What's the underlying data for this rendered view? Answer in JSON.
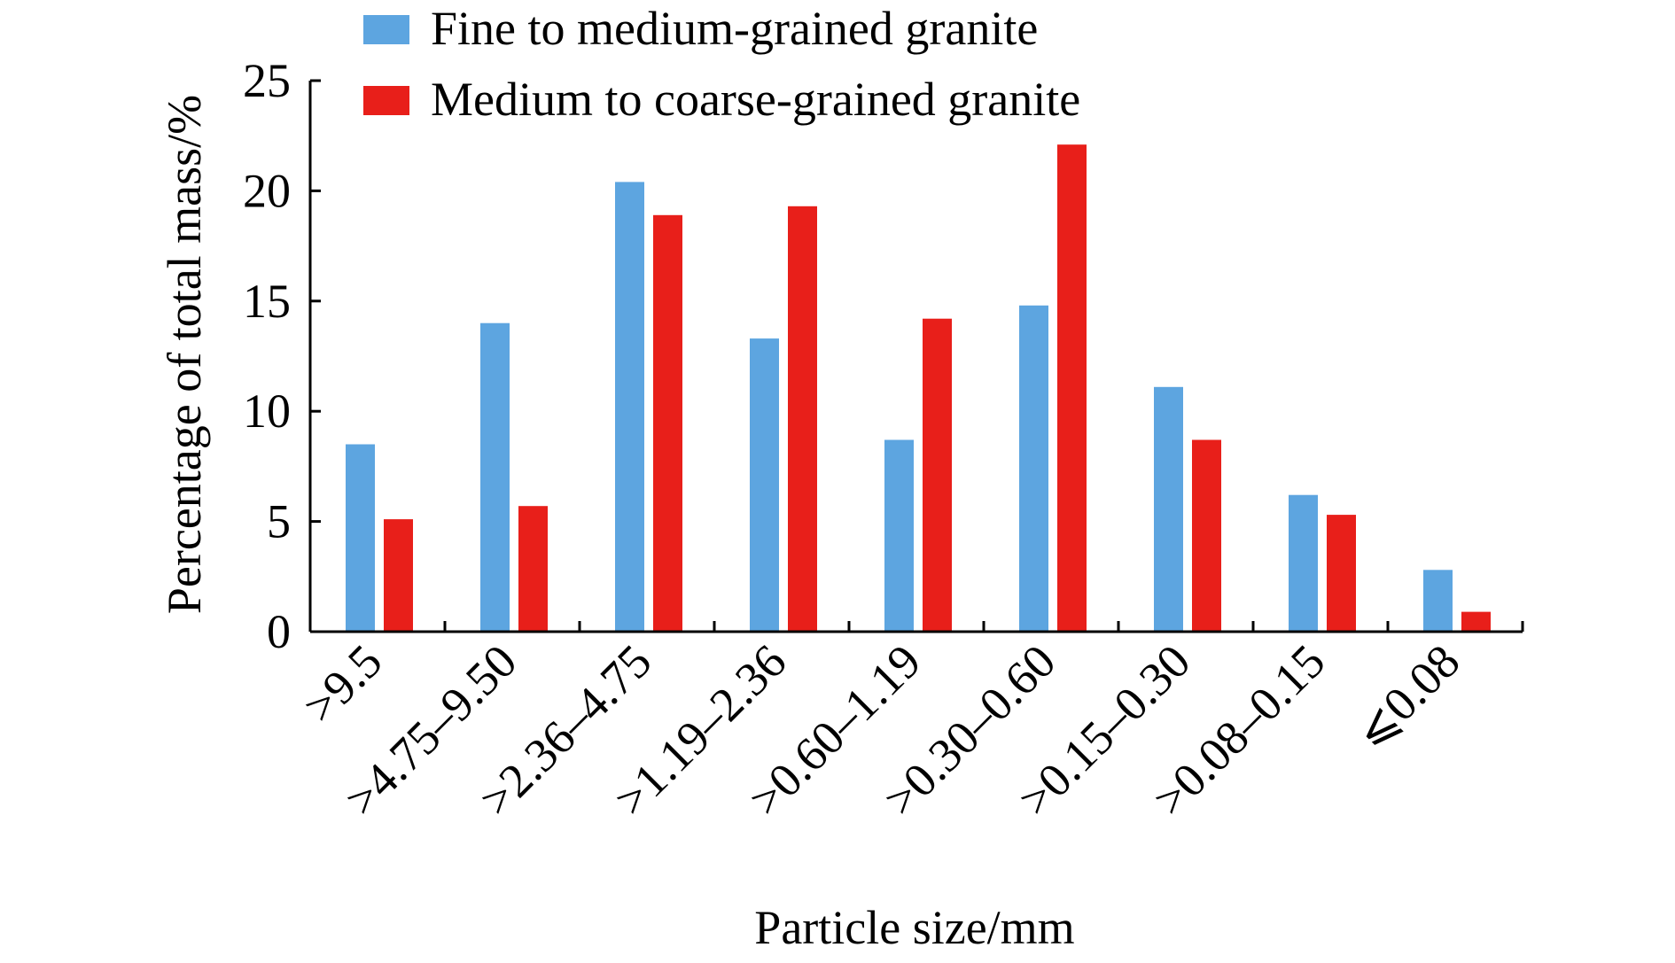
{
  "chart_data": {
    "type": "bar",
    "title": "",
    "xlabel": "Particle size/mm",
    "ylabel": "Percentage of total mass/%",
    "ylim": [
      0,
      25
    ],
    "yticks": [
      0,
      5,
      10,
      15,
      20,
      25
    ],
    "grid": false,
    "legend_position": "top",
    "categories": [
      ">9.5",
      ">4.75–9.50",
      ">2.36–4.75",
      ">1.19–2.36",
      ">0.60–1.19",
      ">0.30–0.60",
      ">0.15–0.30",
      ">0.08–0.15",
      "⩽0.08"
    ],
    "series": [
      {
        "name": "Fine to medium-grained granite",
        "color": "#5DA5E0",
        "values": [
          8.5,
          14.0,
          20.4,
          13.3,
          8.7,
          14.8,
          11.1,
          6.2,
          2.8
        ]
      },
      {
        "name": "Medium to coarse-grained granite",
        "color": "#E81F1A",
        "values": [
          5.1,
          5.7,
          18.9,
          19.3,
          14.2,
          22.1,
          8.7,
          5.3,
          0.9
        ]
      }
    ]
  }
}
